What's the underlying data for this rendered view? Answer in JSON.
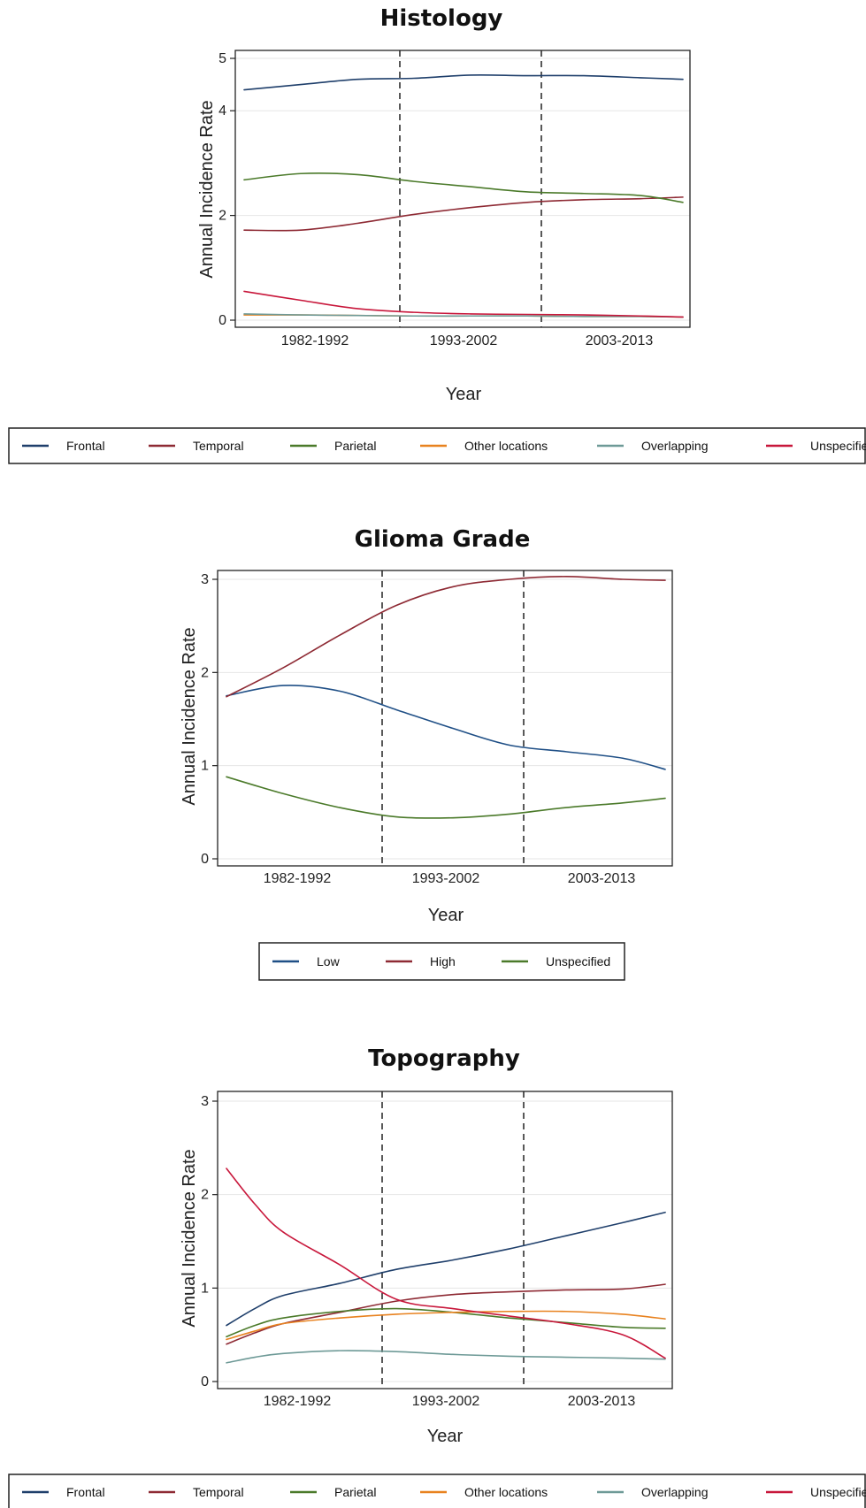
{
  "colors": {
    "frontal": "#1f3f6b",
    "temporal": "#8e2a34",
    "parietal": "#4b7a2a",
    "other": "#e8821f",
    "overlapping": "#6e9a97",
    "unspecified": "#c8173b",
    "low": "#1f4f86",
    "high": "#8e2a34",
    "grade_unspecified": "#4b7a2a"
  },
  "chart_data": [
    {
      "type": "line",
      "title": "Histology",
      "xlabel": "Year",
      "ylabel": "Annual Incidence Rate",
      "xlim": [
        1982,
        2013
      ],
      "ylim": [
        0,
        5
      ],
      "yticks": [
        0,
        2,
        4,
        5
      ],
      "period_labels": [
        {
          "label": "1982-1992",
          "x": 1987
        },
        {
          "label": "1993-2002",
          "x": 1997.5
        },
        {
          "label": "2003-2013",
          "x": 2008.5
        }
      ],
      "dividers": [
        1993,
        2003
      ],
      "grid": true,
      "legend_position": "bottom",
      "x": [
        1982,
        1986,
        1990,
        1994,
        1998,
        2002,
        2006,
        2010,
        2013
      ],
      "series": [
        {
          "name": "Frontal",
          "color_key": "frontal",
          "values": [
            4.4,
            4.5,
            4.6,
            4.62,
            4.68,
            4.67,
            4.67,
            4.63,
            4.6
          ]
        },
        {
          "name": "Temporal",
          "color_key": "temporal",
          "values": [
            1.72,
            1.72,
            1.85,
            2.02,
            2.15,
            2.25,
            2.3,
            2.32,
            2.35
          ]
        },
        {
          "name": "Parietal",
          "color_key": "parietal",
          "values": [
            2.68,
            2.8,
            2.78,
            2.65,
            2.55,
            2.45,
            2.42,
            2.38,
            2.25
          ]
        },
        {
          "name": "Other locations",
          "color_key": "other",
          "values": [
            0.1,
            0.1,
            0.09,
            0.08,
            0.08,
            0.08,
            0.07,
            0.07,
            0.06
          ]
        },
        {
          "name": "Overlapping",
          "color_key": "overlapping",
          "values": [
            0.12,
            0.1,
            0.09,
            0.08,
            0.08,
            0.08,
            0.07,
            0.07,
            0.06
          ]
        },
        {
          "name": "Unspecified",
          "color_key": "unspecified",
          "values": [
            0.55,
            0.38,
            0.22,
            0.15,
            0.12,
            0.11,
            0.1,
            0.08,
            0.06
          ]
        }
      ]
    },
    {
      "type": "line",
      "title": "Glioma Grade",
      "xlabel": "Year",
      "ylabel": "Annual Incidence Rate",
      "xlim": [
        1982,
        2013
      ],
      "ylim": [
        0,
        3
      ],
      "yticks": [
        0,
        1,
        2,
        3
      ],
      "period_labels": [
        {
          "label": "1982-1992",
          "x": 1987
        },
        {
          "label": "1993-2002",
          "x": 1997.5
        },
        {
          "label": "2003-2013",
          "x": 2008.5
        }
      ],
      "dividers": [
        1993,
        2003
      ],
      "grid": true,
      "legend_position": "bottom",
      "x": [
        1982,
        1986,
        1990,
        1994,
        1998,
        2002,
        2006,
        2010,
        2013
      ],
      "series": [
        {
          "name": "Low",
          "color_key": "low",
          "values": [
            1.75,
            1.86,
            1.8,
            1.6,
            1.4,
            1.22,
            1.15,
            1.08,
            0.96
          ]
        },
        {
          "name": "High",
          "color_key": "high",
          "values": [
            1.74,
            2.05,
            2.4,
            2.72,
            2.92,
            3.0,
            3.03,
            3.0,
            2.99
          ]
        },
        {
          "name": "Unspecified",
          "color_key": "grade_unspecified",
          "values": [
            0.88,
            0.7,
            0.55,
            0.45,
            0.44,
            0.48,
            0.55,
            0.6,
            0.65
          ]
        }
      ]
    },
    {
      "type": "line",
      "title": "Topography",
      "xlabel": "Year",
      "ylabel": "Annual Incidence Rate",
      "xlim": [
        1982,
        2013
      ],
      "ylim": [
        0,
        3
      ],
      "yticks": [
        0,
        1,
        2,
        3
      ],
      "period_labels": [
        {
          "label": "1982-1992",
          "x": 1987
        },
        {
          "label": "1993-2002",
          "x": 1997.5
        },
        {
          "label": "2003-2013",
          "x": 2008.5
        }
      ],
      "dividers": [
        1993,
        2003
      ],
      "grid": true,
      "legend_position": "bottom",
      "x": [
        1982,
        1984,
        1986,
        1990,
        1994,
        1998,
        2002,
        2006,
        2010,
        2013
      ],
      "series": [
        {
          "name": "Frontal",
          "color_key": "frontal",
          "values": [
            0.6,
            0.78,
            0.92,
            1.05,
            1.2,
            1.3,
            1.42,
            1.56,
            1.7,
            1.81
          ]
        },
        {
          "name": "Temporal",
          "color_key": "temporal",
          "values": [
            0.4,
            0.52,
            0.62,
            0.74,
            0.86,
            0.93,
            0.96,
            0.98,
            0.99,
            1.04
          ]
        },
        {
          "name": "Parietal",
          "color_key": "parietal",
          "values": [
            0.48,
            0.6,
            0.68,
            0.75,
            0.78,
            0.74,
            0.68,
            0.63,
            0.58,
            0.57
          ]
        },
        {
          "name": "Other locations",
          "color_key": "other",
          "values": [
            0.45,
            0.54,
            0.62,
            0.68,
            0.72,
            0.74,
            0.75,
            0.75,
            0.72,
            0.67
          ]
        },
        {
          "name": "Overlapping",
          "color_key": "overlapping",
          "values": [
            0.2,
            0.26,
            0.3,
            0.33,
            0.32,
            0.29,
            0.27,
            0.26,
            0.25,
            0.24
          ]
        },
        {
          "name": "Unspecified",
          "color_key": "unspecified",
          "values": [
            2.28,
            1.9,
            1.6,
            1.25,
            0.88,
            0.78,
            0.7,
            0.62,
            0.5,
            0.25
          ]
        }
      ]
    }
  ]
}
